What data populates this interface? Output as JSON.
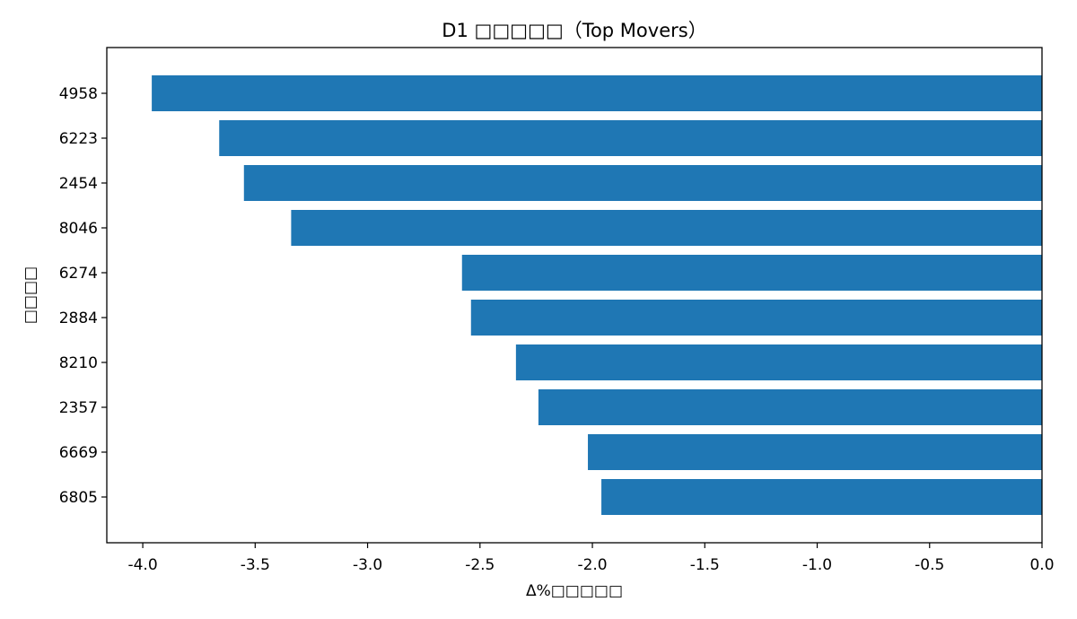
{
  "chart_data": {
    "type": "bar",
    "orientation": "horizontal",
    "title": "D1 □□□□□（Top Movers）",
    "xlabel": "Δ%□□□□□",
    "ylabel": "□□□□",
    "categories": [
      "4958",
      "6223",
      "2454",
      "8046",
      "6274",
      "2884",
      "8210",
      "2357",
      "6669",
      "6805"
    ],
    "values": [
      -3.96,
      -3.66,
      -3.55,
      -3.34,
      -2.58,
      -2.54,
      -2.34,
      -2.24,
      -2.02,
      -1.96
    ],
    "xlim": [
      -4.16,
      0.0
    ],
    "xticks": [
      -4.0,
      -3.5,
      -3.0,
      -2.5,
      -2.0,
      -1.5,
      -1.0,
      -0.5,
      0.0
    ],
    "xtick_labels": [
      "-4.0",
      "-3.5",
      "-3.0",
      "-2.5",
      "-2.0",
      "-1.5",
      "-1.0",
      "-0.5",
      "0.0"
    ],
    "bar_color": "#1f77b4",
    "grid": false,
    "legend": "none"
  }
}
